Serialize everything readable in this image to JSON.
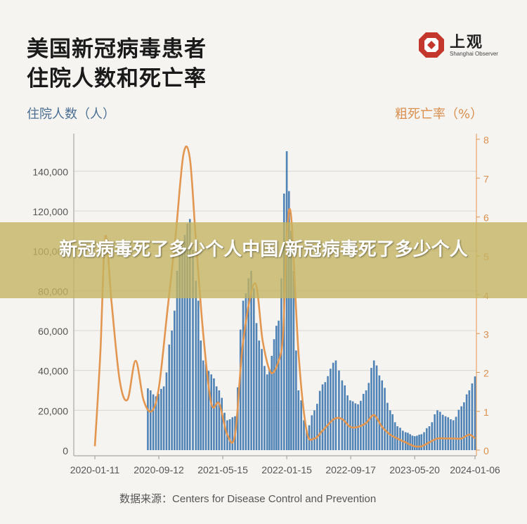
{
  "title_line1": "美国新冠病毒患者",
  "title_line2": "住院人数和死亡率",
  "logo": {
    "name": "上观",
    "subtitle": "Shanghai Observer",
    "icon": "shanghai-observer-logo-icon",
    "color": "#c4372d"
  },
  "banner": {
    "text": "新冠病毒死了多少个人中国/新冠病毒死了多少个人"
  },
  "source_label": "数据来源：",
  "source_value": "Centers for Disease Control and Prevention",
  "colors": {
    "bars": "#4f82b5",
    "line": "#e3964f",
    "left_axis": "#4a6f92",
    "right_axis": "#d98f4e",
    "background": "#f6f4f1"
  },
  "chart_data": {
    "type": "bar+line",
    "ylabel_left": "住院人数（人）",
    "ylabel_right": "粗死亡率（%）",
    "ylim_left": [
      0,
      150000
    ],
    "ylim_right": [
      0,
      8
    ],
    "yticks_left": [
      "0",
      "20,000",
      "40,000",
      "60,000",
      "80,000",
      "100,000",
      "120,000",
      "140,000"
    ],
    "yticks_right": [
      "0",
      "1",
      "2",
      "3",
      "4",
      "5",
      "6",
      "7",
      "8"
    ],
    "xticks": [
      "2020-01-11",
      "2020-09-12",
      "2021-05-15",
      "2022-01-15",
      "2022-09-17",
      "2023-05-20",
      "2024-01-06"
    ],
    "xlim": [
      "2020-01-11",
      "2024-01-06"
    ],
    "series": [
      {
        "kind": "bar",
        "points": [
          [
            "2020-08-01",
            31000
          ],
          [
            "2020-09-01",
            27000
          ],
          [
            "2020-10-01",
            32000
          ],
          [
            "2020-11-01",
            60000
          ],
          [
            "2020-12-01",
            100000
          ],
          [
            "2021-01-09",
            116000
          ],
          [
            "2021-02-01",
            85000
          ],
          [
            "2021-03-01",
            45000
          ],
          [
            "2021-04-01",
            38000
          ],
          [
            "2021-05-01",
            30000
          ],
          [
            "2021-06-01",
            15000
          ],
          [
            "2021-07-01",
            17000
          ],
          [
            "2021-08-01",
            75000
          ],
          [
            "2021-09-01",
            90000
          ],
          [
            "2021-10-01",
            55000
          ],
          [
            "2021-11-01",
            38000
          ],
          [
            "2021-12-15",
            65000
          ],
          [
            "2022-01-15",
            150000
          ],
          [
            "2022-02-01",
            110000
          ],
          [
            "2022-03-01",
            30000
          ],
          [
            "2022-04-01",
            10000
          ],
          [
            "2022-05-01",
            20000
          ],
          [
            "2022-06-01",
            33000
          ],
          [
            "2022-07-22",
            45000
          ],
          [
            "2022-08-15",
            35000
          ],
          [
            "2022-09-15",
            25000
          ],
          [
            "2022-10-15",
            23000
          ],
          [
            "2022-11-15",
            30000
          ],
          [
            "2022-12-15",
            45000
          ],
          [
            "2023-01-15",
            35000
          ],
          [
            "2023-02-15",
            20000
          ],
          [
            "2023-03-15",
            12000
          ],
          [
            "2023-04-15",
            9000
          ],
          [
            "2023-05-20",
            7000
          ],
          [
            "2023-06-15",
            8000
          ],
          [
            "2023-07-15",
            12000
          ],
          [
            "2023-08-15",
            20000
          ],
          [
            "2023-09-15",
            17000
          ],
          [
            "2023-10-15",
            15000
          ],
          [
            "2023-11-15",
            22000
          ],
          [
            "2023-12-15",
            30000
          ],
          [
            "2024-01-06",
            37000
          ]
        ]
      },
      {
        "kind": "line",
        "points": [
          [
            "2020-01-11",
            0.1
          ],
          [
            "2020-02-01",
            2.5
          ],
          [
            "2020-02-20",
            5.5
          ],
          [
            "2020-03-15",
            3.8
          ],
          [
            "2020-04-15",
            1.8
          ],
          [
            "2020-05-15",
            1.3
          ],
          [
            "2020-06-15",
            2.3
          ],
          [
            "2020-07-15",
            1.3
          ],
          [
            "2020-08-15",
            1.0
          ],
          [
            "2020-09-12",
            1.6
          ],
          [
            "2020-10-15",
            3.6
          ],
          [
            "2020-11-15",
            5.5
          ],
          [
            "2020-12-15",
            7.6
          ],
          [
            "2021-01-09",
            7.5
          ],
          [
            "2021-02-01",
            5.4
          ],
          [
            "2021-03-01",
            3.0
          ],
          [
            "2021-04-01",
            1.2
          ],
          [
            "2021-05-01",
            1.2
          ],
          [
            "2021-06-01",
            0.4
          ],
          [
            "2021-07-01",
            0.4
          ],
          [
            "2021-08-01",
            2.8
          ],
          [
            "2021-09-15",
            4.3
          ],
          [
            "2021-10-15",
            2.8
          ],
          [
            "2021-11-15",
            2.0
          ],
          [
            "2021-12-15",
            2.3
          ],
          [
            "2022-01-01",
            3.0
          ],
          [
            "2022-01-15",
            5.5
          ],
          [
            "2022-02-01",
            6.0
          ],
          [
            "2022-03-01",
            2.5
          ],
          [
            "2022-04-01",
            0.5
          ],
          [
            "2022-05-01",
            0.3
          ],
          [
            "2022-06-01",
            0.5
          ],
          [
            "2022-07-15",
            0.8
          ],
          [
            "2022-08-15",
            0.8
          ],
          [
            "2022-09-15",
            0.6
          ],
          [
            "2022-10-15",
            0.6
          ],
          [
            "2022-11-15",
            0.7
          ],
          [
            "2022-12-15",
            0.9
          ],
          [
            "2023-01-15",
            0.6
          ],
          [
            "2023-02-15",
            0.4
          ],
          [
            "2023-03-15",
            0.3
          ],
          [
            "2023-04-15",
            0.2
          ],
          [
            "2023-05-20",
            0.1
          ],
          [
            "2023-06-15",
            0.1
          ],
          [
            "2023-07-15",
            0.2
          ],
          [
            "2023-08-15",
            0.3
          ],
          [
            "2023-09-15",
            0.3
          ],
          [
            "2023-10-15",
            0.3
          ],
          [
            "2023-11-15",
            0.3
          ],
          [
            "2023-12-15",
            0.4
          ],
          [
            "2024-01-06",
            0.3
          ]
        ]
      }
    ]
  }
}
